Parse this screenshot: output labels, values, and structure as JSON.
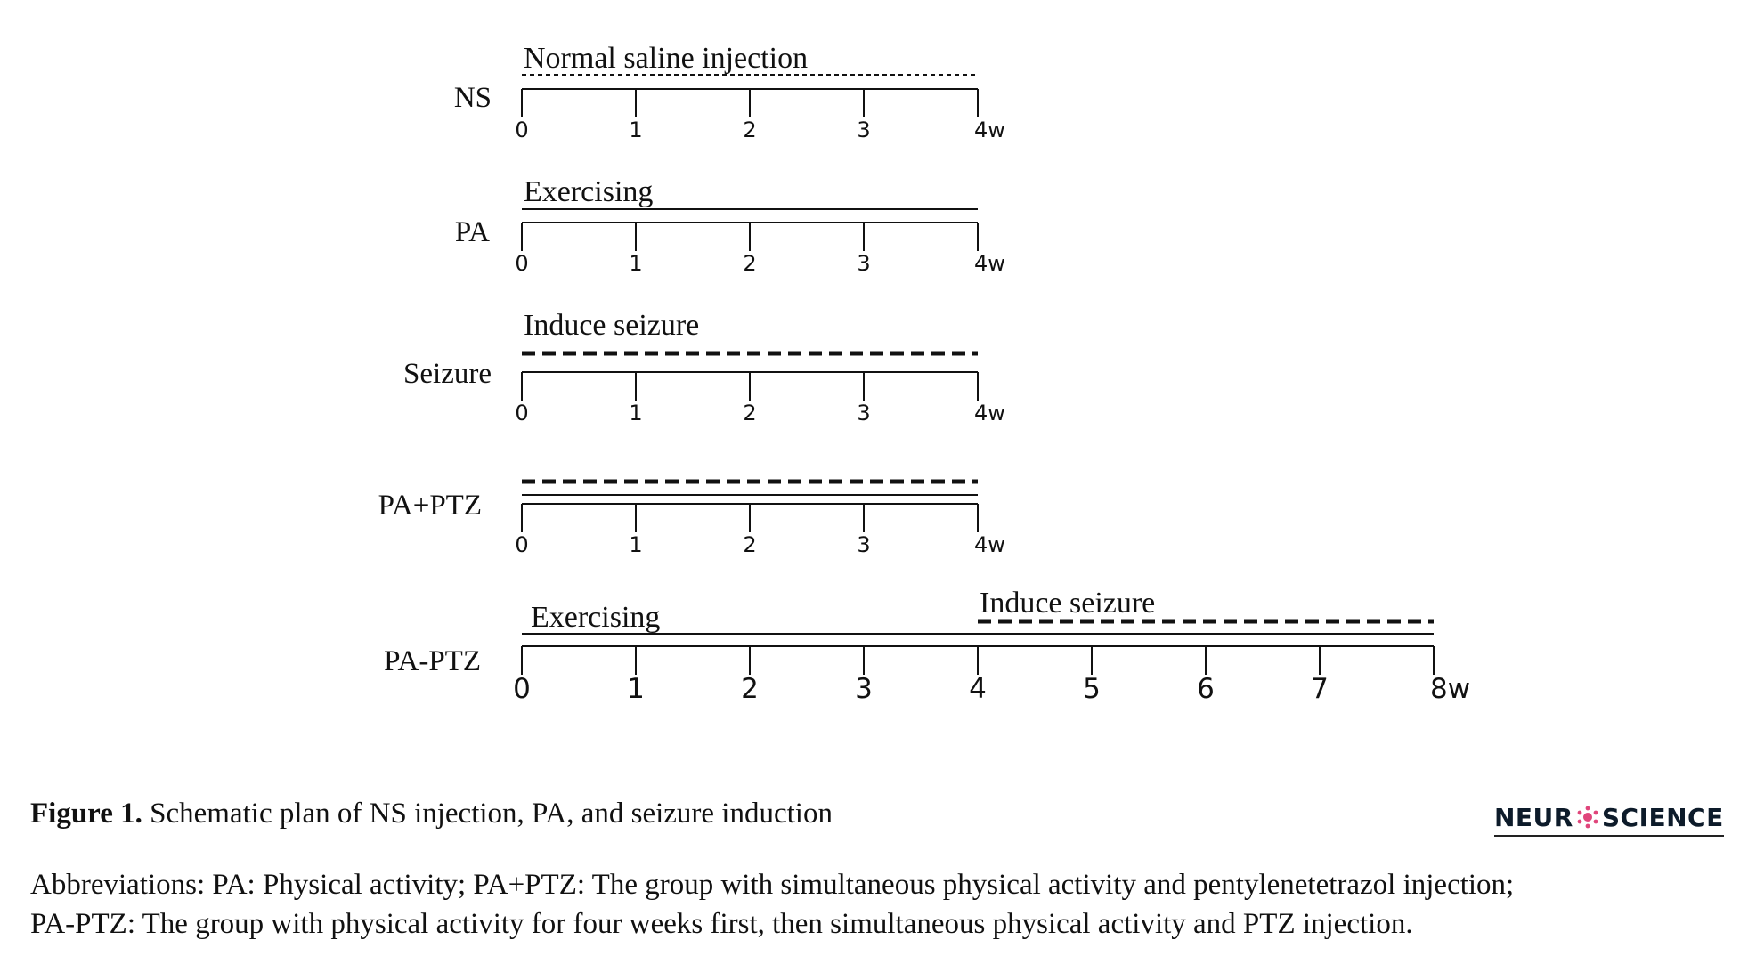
{
  "diagram": {
    "rows": [
      {
        "label": "NS",
        "weeks": [
          "0",
          "1",
          "2",
          "3",
          "4w"
        ],
        "bars": [
          {
            "text": "Normal saline injection",
            "style": "dotted",
            "from": 0,
            "to": 4
          }
        ]
      },
      {
        "label": "PA",
        "weeks": [
          "0",
          "1",
          "2",
          "3",
          "4w"
        ],
        "bars": [
          {
            "text": "Exercising",
            "style": "solid",
            "from": 0,
            "to": 4
          }
        ]
      },
      {
        "label": "Seizure",
        "weeks": [
          "0",
          "1",
          "2",
          "3",
          "4w"
        ],
        "bars": [
          {
            "text": "Induce seizure",
            "style": "dashed",
            "from": 0,
            "to": 4
          }
        ]
      },
      {
        "label": "PA+PTZ",
        "weeks": [
          "0",
          "1",
          "2",
          "3",
          "4w"
        ],
        "bars": [
          {
            "text": "",
            "style": "dashed",
            "from": 0,
            "to": 4
          },
          {
            "text": "",
            "style": "solid",
            "from": 0,
            "to": 4
          }
        ]
      },
      {
        "label": "PA-PTZ",
        "weeks": [
          "0",
          "1",
          "2",
          "3",
          "4",
          "5",
          "6",
          "7",
          "8w"
        ],
        "bars": [
          {
            "text": "Exercising",
            "style": "solid",
            "from": 0,
            "to": 8
          },
          {
            "text": "Induce seizure",
            "style": "dashed",
            "from": 4,
            "to": 8
          }
        ]
      }
    ]
  },
  "caption": {
    "label": "Figure 1.",
    "text": " Schematic plan of NS injection, PA, and seizure induction"
  },
  "abbreviations": {
    "line1": "Abbreviations: PA: Physical activity; PA+PTZ: The group with simultaneous physical activity and pentylenetetrazol injection;",
    "line2": "PA-PTZ: The group with physical activity for four weeks first, then simultaneous physical activity and PTZ injection."
  },
  "logo": {
    "text_left": "NEUR",
    "text_right": "SCIENCE",
    "icon": "neuron-icon",
    "accent_color": "#e0457b"
  },
  "colors": {
    "ink": "#111111",
    "logo_text": "#0d1b2a"
  }
}
